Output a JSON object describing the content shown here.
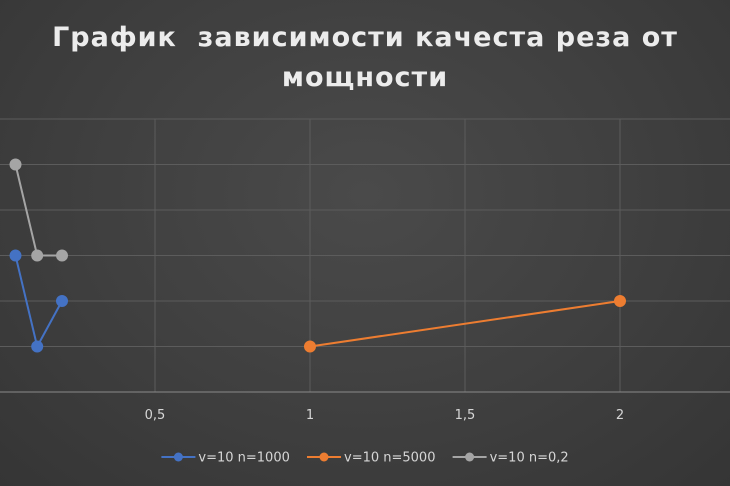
{
  "chart_data": {
    "type": "scatter",
    "title": "График  зависимости качеста реза от мощности",
    "xlabel": "",
    "ylabel": "",
    "xlim": [
      0,
      2.4
    ],
    "ylim": [
      0,
      6
    ],
    "x_ticks": [
      {
        "value": 0.5,
        "label": "0,5"
      },
      {
        "value": 1,
        "label": "1"
      },
      {
        "value": 1.5,
        "label": "1,5"
      },
      {
        "value": 2,
        "label": "2"
      }
    ],
    "y_gridlines": [
      1,
      2,
      3,
      4,
      5,
      6
    ],
    "grid": true,
    "legend_position": "bottom",
    "series": [
      {
        "name": "v=10 n=1000",
        "color": "#4472c4",
        "points": [
          [
            0.05,
            3
          ],
          [
            0.12,
            1
          ],
          [
            0.2,
            2
          ]
        ]
      },
      {
        "name": "v=10 n=5000",
        "color": "#ed7d31",
        "points": [
          [
            1,
            1
          ],
          [
            2,
            2
          ]
        ]
      },
      {
        "name": "v=10 n=0,2",
        "color": "#a5a5a5",
        "points": [
          [
            0.05,
            5
          ],
          [
            0.12,
            3
          ],
          [
            0.2,
            3
          ]
        ]
      }
    ]
  }
}
